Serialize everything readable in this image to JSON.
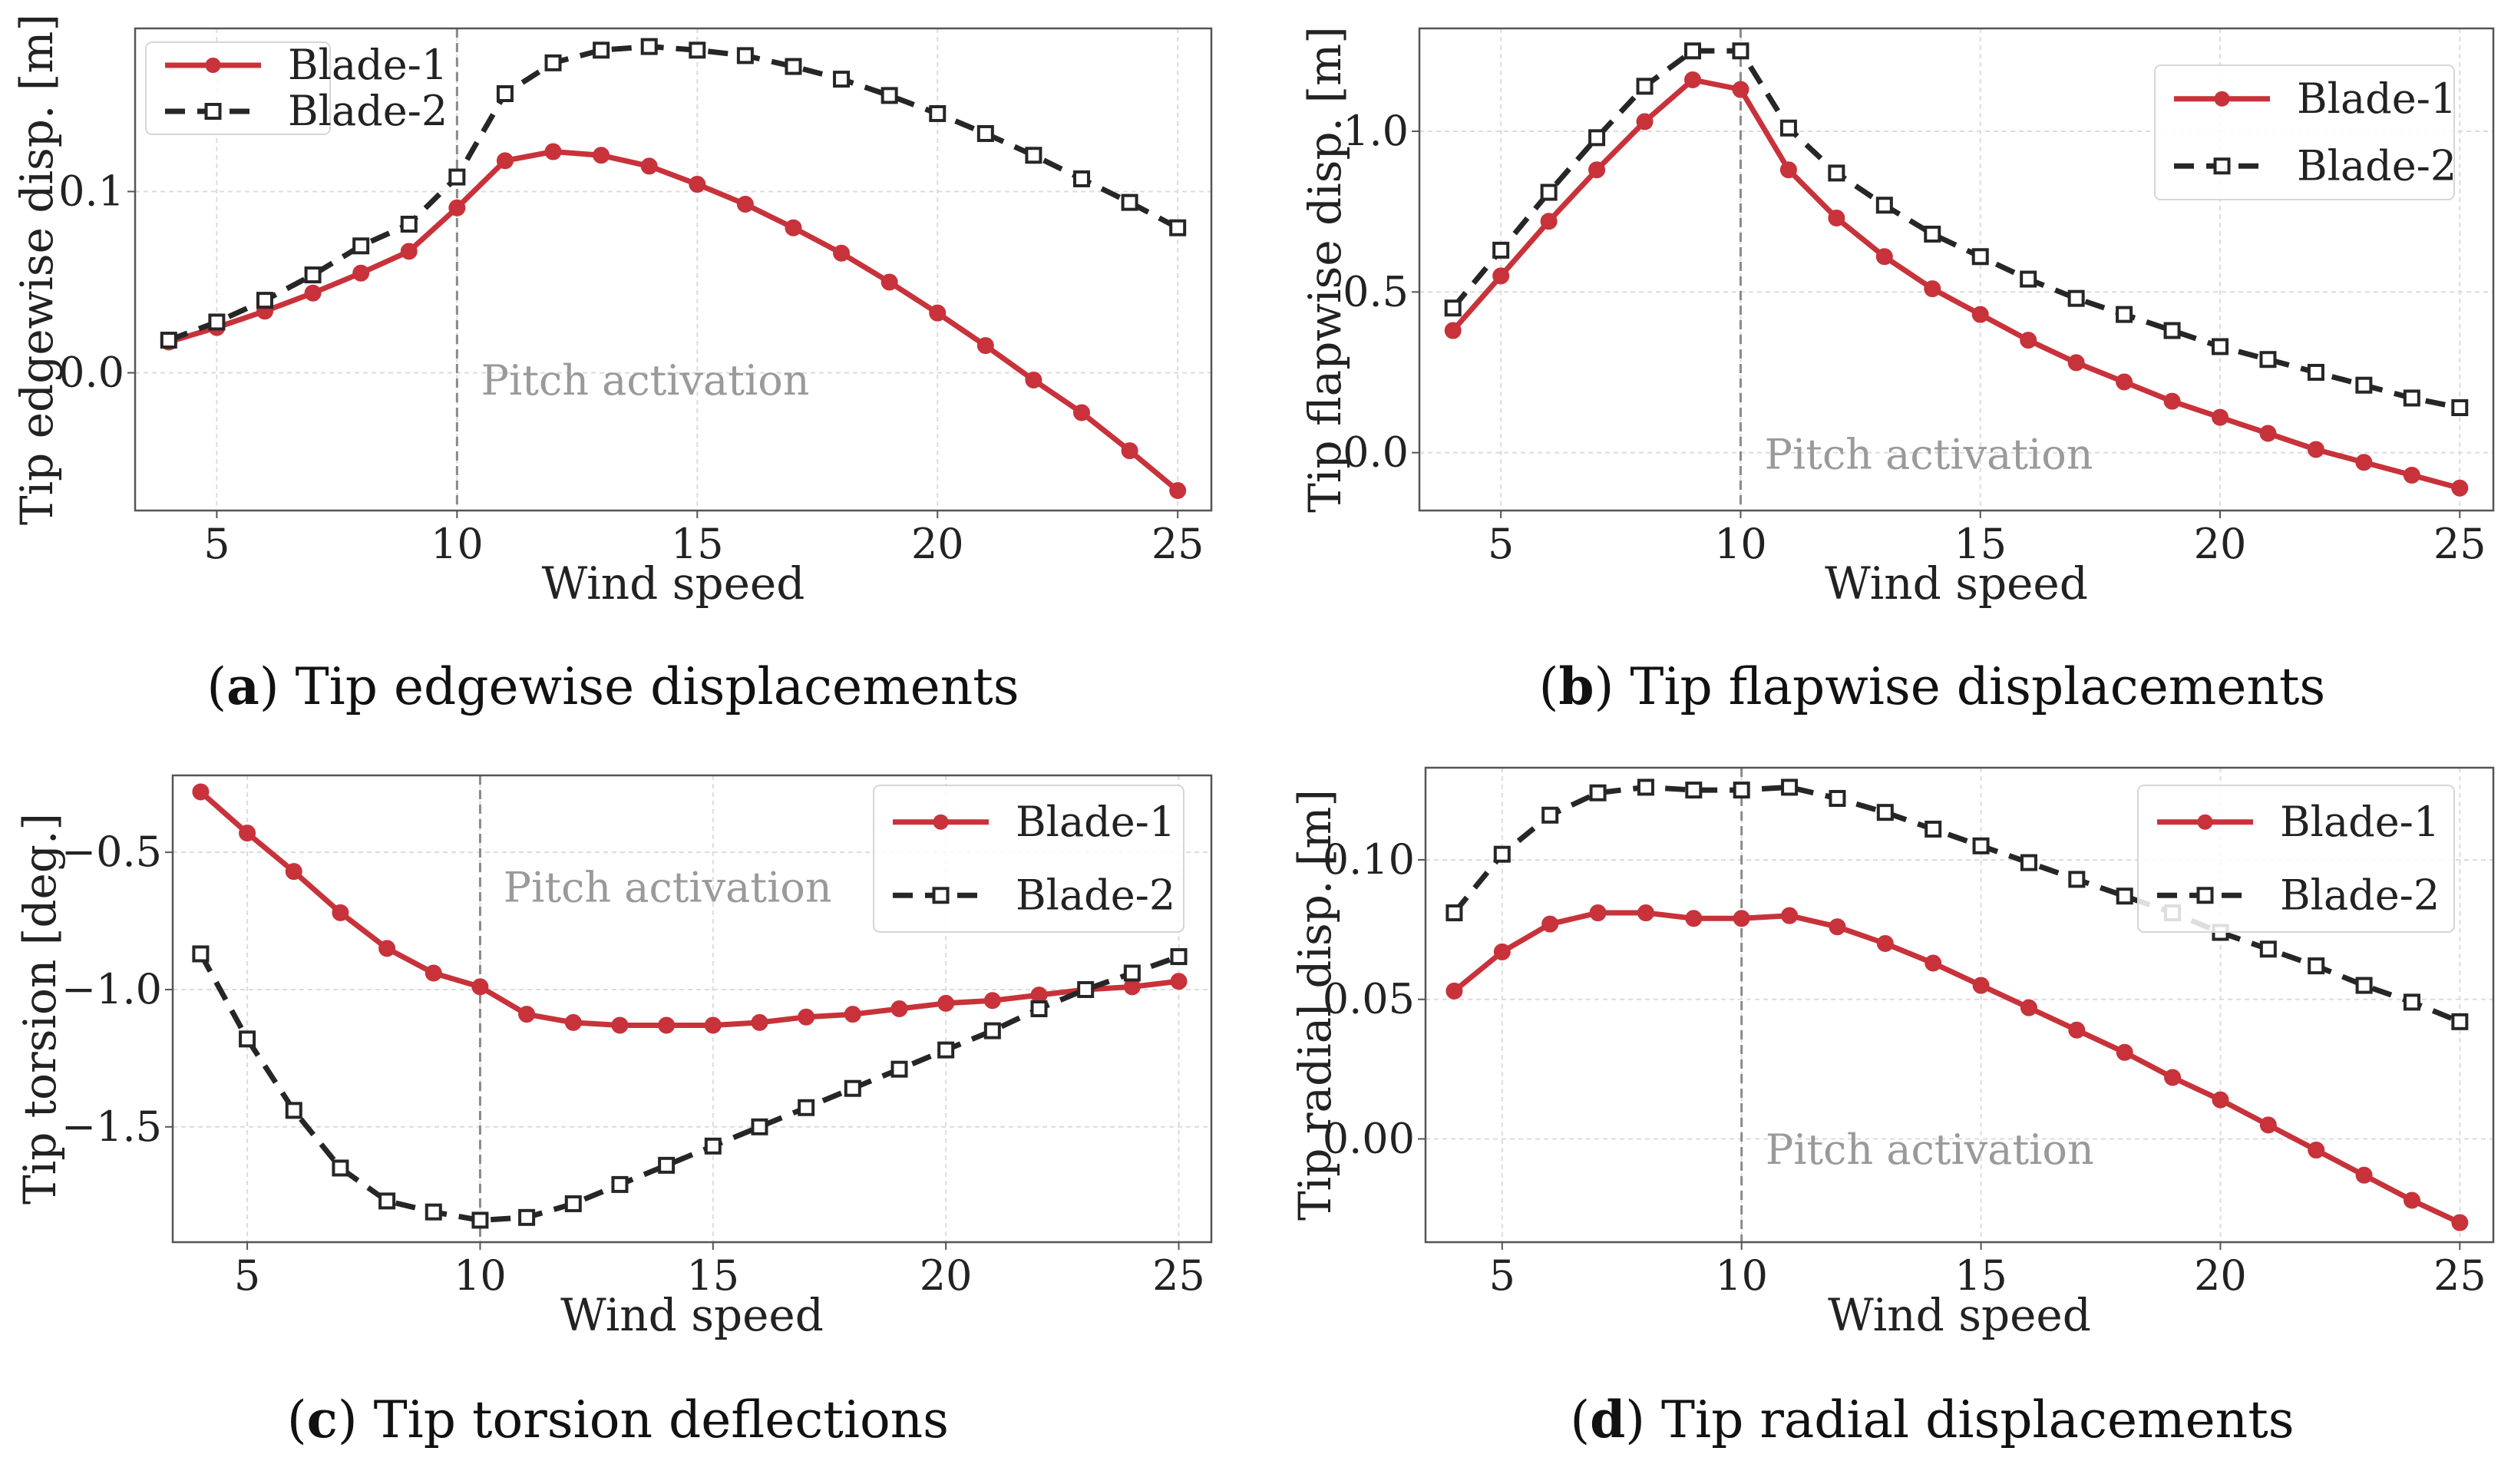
{
  "chart_data": [
    {
      "type": "line",
      "panel": "a",
      "caption_letter": "a",
      "caption_text": "Tip edgewise displacements",
      "xlabel": "Wind speed",
      "ylabel": "Tip edgewise disp. [m]",
      "xlim": [
        3.3,
        25.7
      ],
      "ylim": [
        -0.076,
        0.19
      ],
      "xticks": [
        5,
        10,
        15,
        20,
        25
      ],
      "yticks": [
        0.0,
        0.1
      ],
      "ytick_labels": [
        "0.0",
        "0.1"
      ],
      "grid": true,
      "legend_position": "top-left",
      "annotation": {
        "text": "Pitch activation",
        "x": 10.5,
        "y": -0.012
      },
      "vline_x": 10,
      "x": [
        4,
        5,
        6,
        7,
        8,
        9,
        10,
        11,
        12,
        13,
        14,
        15,
        16,
        17,
        18,
        19,
        20,
        21,
        22,
        23,
        24,
        25
      ],
      "series": [
        {
          "name": "Blade-1",
          "color": "#c8323a",
          "style": "solid",
          "marker": "circle",
          "values": [
            0.017,
            0.025,
            0.034,
            0.044,
            0.055,
            0.067,
            0.091,
            0.117,
            0.122,
            0.12,
            0.114,
            0.104,
            0.093,
            0.08,
            0.066,
            0.05,
            0.033,
            0.015,
            -0.004,
            -0.022,
            -0.043,
            -0.065
          ]
        },
        {
          "name": "Blade-2",
          "color": "#262626",
          "style": "dashed",
          "marker": "square",
          "values": [
            0.018,
            0.028,
            0.04,
            0.054,
            0.07,
            0.082,
            0.108,
            0.154,
            0.171,
            0.178,
            0.18,
            0.178,
            0.175,
            0.169,
            0.162,
            0.153,
            0.143,
            0.132,
            0.12,
            0.107,
            0.094,
            0.08
          ]
        }
      ]
    },
    {
      "type": "line",
      "panel": "b",
      "caption_letter": "b",
      "caption_text": "Tip flapwise displacements",
      "xlabel": "Wind speed",
      "ylabel": "Tip flapwise disp. [m]",
      "xlim": [
        3.3,
        25.7
      ],
      "ylim": [
        -0.18,
        1.32
      ],
      "xticks": [
        5,
        10,
        15,
        20,
        25
      ],
      "yticks": [
        0.0,
        0.5,
        1.0
      ],
      "ytick_labels": [
        "0.0",
        "0.5",
        "1.0"
      ],
      "grid": true,
      "legend_position": "top-right",
      "annotation": {
        "text": "Pitch activation",
        "x": 10.5,
        "y": -0.05
      },
      "vline_x": 10,
      "x": [
        4,
        5,
        6,
        7,
        8,
        9,
        10,
        11,
        12,
        13,
        14,
        15,
        16,
        17,
        18,
        19,
        20,
        21,
        22,
        23,
        24,
        25
      ],
      "series": [
        {
          "name": "Blade-1",
          "color": "#c8323a",
          "style": "solid",
          "marker": "circle",
          "values": [
            0.38,
            0.55,
            0.72,
            0.88,
            1.03,
            1.16,
            1.13,
            0.88,
            0.73,
            0.61,
            0.51,
            0.43,
            0.35,
            0.28,
            0.22,
            0.16,
            0.11,
            0.06,
            0.01,
            -0.03,
            -0.07,
            -0.11
          ]
        },
        {
          "name": "Blade-2",
          "color": "#262626",
          "style": "dashed",
          "marker": "square",
          "values": [
            0.45,
            0.63,
            0.81,
            0.98,
            1.14,
            1.25,
            1.25,
            1.01,
            0.87,
            0.77,
            0.68,
            0.61,
            0.54,
            0.48,
            0.43,
            0.38,
            0.33,
            0.29,
            0.25,
            0.21,
            0.17,
            0.14
          ]
        }
      ]
    },
    {
      "type": "line",
      "panel": "c",
      "caption_letter": "c",
      "caption_text": "Tip torsion deflections",
      "xlabel": "Wind speed",
      "ylabel": "Tip torsion [deg.]",
      "xlim": [
        3.4,
        25.7
      ],
      "ylim": [
        -1.92,
        -0.22
      ],
      "xticks": [
        5,
        10,
        15,
        20,
        25
      ],
      "yticks": [
        -1.5,
        -1.0,
        -0.5
      ],
      "ytick_labels": [
        "−1.5",
        "−1.0",
        "−0.5"
      ],
      "grid": true,
      "legend_position": "top-right",
      "annotation": {
        "text": "Pitch activation",
        "x": 10.5,
        "y": -0.68
      },
      "vline_x": 10,
      "x": [
        4,
        5,
        6,
        7,
        8,
        9,
        10,
        11,
        12,
        13,
        14,
        15,
        16,
        17,
        18,
        19,
        20,
        21,
        22,
        23,
        24,
        25
      ],
      "series": [
        {
          "name": "Blade-1",
          "color": "#c8323a",
          "style": "solid",
          "marker": "circle",
          "values": [
            -0.28,
            -0.43,
            -0.57,
            -0.72,
            -0.85,
            -0.94,
            -0.99,
            -1.09,
            -1.12,
            -1.13,
            -1.13,
            -1.13,
            -1.12,
            -1.1,
            -1.09,
            -1.07,
            -1.05,
            -1.04,
            -1.02,
            -1.0,
            -0.99,
            -0.97
          ]
        },
        {
          "name": "Blade-2",
          "color": "#262626",
          "style": "dashed",
          "marker": "square",
          "values": [
            -0.87,
            -1.18,
            -1.44,
            -1.65,
            -1.77,
            -1.81,
            -1.84,
            -1.83,
            -1.78,
            -1.71,
            -1.64,
            -1.57,
            -1.5,
            -1.43,
            -1.36,
            -1.29,
            -1.22,
            -1.15,
            -1.07,
            -1.0,
            -0.94,
            -0.88
          ]
        }
      ]
    },
    {
      "type": "line",
      "panel": "d",
      "caption_letter": "d",
      "caption_text": "Tip radial displacements",
      "xlabel": "Wind speed",
      "ylabel": "Tip radial disp. [m]",
      "xlim": [
        3.4,
        25.7
      ],
      "ylim": [
        -0.037,
        0.133
      ],
      "xticks": [
        5,
        10,
        15,
        20,
        25
      ],
      "yticks": [
        0.0,
        0.05,
        0.1
      ],
      "ytick_labels": [
        "0.00",
        "0.05",
        "0.10"
      ],
      "grid": true,
      "legend_position": "top-right",
      "annotation": {
        "text": "Pitch activation",
        "x": 10.5,
        "y": -0.009
      },
      "vline_x": 10,
      "x": [
        4,
        5,
        6,
        7,
        8,
        9,
        10,
        11,
        12,
        13,
        14,
        15,
        16,
        17,
        18,
        19,
        20,
        21,
        22,
        23,
        24,
        25
      ],
      "series": [
        {
          "name": "Blade-1",
          "color": "#c8323a",
          "style": "solid",
          "marker": "circle",
          "values": [
            0.053,
            0.067,
            0.077,
            0.081,
            0.081,
            0.079,
            0.079,
            0.08,
            0.076,
            0.07,
            0.063,
            0.055,
            0.047,
            0.039,
            0.031,
            0.022,
            0.014,
            0.005,
            -0.004,
            -0.013,
            -0.022,
            -0.03
          ]
        },
        {
          "name": "Blade-2",
          "color": "#262626",
          "style": "dashed",
          "marker": "square",
          "values": [
            0.081,
            0.102,
            0.116,
            0.124,
            0.126,
            0.125,
            0.125,
            0.126,
            0.122,
            0.117,
            0.111,
            0.105,
            0.099,
            0.093,
            0.087,
            0.081,
            0.074,
            0.068,
            0.062,
            0.055,
            0.049,
            0.042
          ]
        }
      ]
    }
  ]
}
